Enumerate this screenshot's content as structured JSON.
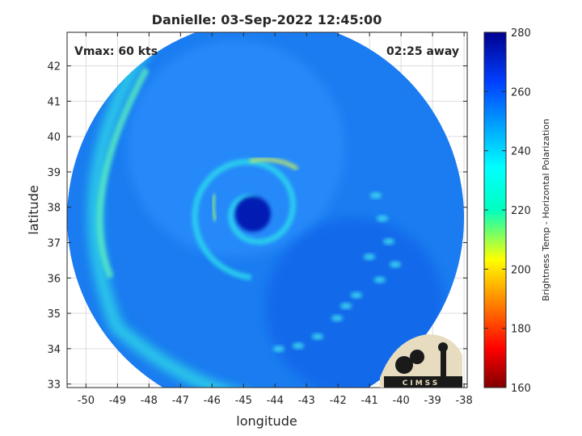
{
  "chart_data": {
    "type": "heatmap",
    "title": "Danielle: 03-Sep-2022 12:45:00",
    "xlabel": "longitude",
    "ylabel": "latitude",
    "xlim": [
      -50.6,
      -37.9
    ],
    "ylim": [
      32.9,
      42.95
    ],
    "x_ticks": [
      -50,
      -49,
      -48,
      -47,
      -46,
      -45,
      -44,
      -43,
      -42,
      -41,
      -40,
      -39,
      -38
    ],
    "y_ticks": [
      33,
      34,
      35,
      36,
      37,
      38,
      39,
      40,
      41,
      42
    ],
    "grid": true,
    "annotations": {
      "top_left": "Vmax: 60 kts",
      "top_right": "02:25 away"
    },
    "storm_center": {
      "lon": -44.7,
      "lat": 37.9
    },
    "swath": {
      "center_lon": -44.3,
      "center_lat": 37.7,
      "radius_deg": 6.3
    },
    "colorbar": {
      "label": "Brightness Temp - Horizontal Polarization",
      "min": 160,
      "max": 280,
      "ticks": [
        160,
        180,
        200,
        220,
        240,
        260,
        280
      ],
      "colormap": "jet"
    },
    "logo_text": "CIMSS"
  }
}
